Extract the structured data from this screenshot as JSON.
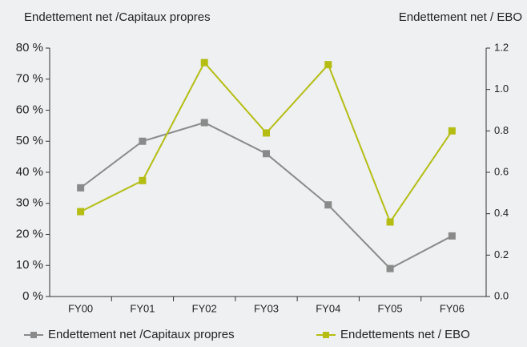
{
  "chart_data": {
    "type": "line",
    "y_label": "Endettement net /Capitaux propres",
    "y2_label": "Endettement net / EBO",
    "categories": [
      "FY00",
      "FY01",
      "FY02",
      "FY03",
      "FY04",
      "FY05",
      "FY06"
    ],
    "series": [
      {
        "name": "Endettement net /Capitaux propres",
        "color": "#8a8a8a",
        "values": [
          35,
          50,
          56,
          46,
          29.5,
          9,
          19.5
        ]
      },
      {
        "name": "Endettements net / EBO",
        "color": "#b5bd12",
        "axis": "y2",
        "values": [
          0.41,
          0.56,
          1.13,
          0.79,
          1.12,
          0.36,
          0.8
        ]
      }
    ],
    "ylim": [
      0,
      80
    ],
    "yticks": [
      {
        "value": 0,
        "label": "0 %"
      },
      {
        "value": 10,
        "label": "10 %"
      },
      {
        "value": 20,
        "label": "20 %"
      },
      {
        "value": 30,
        "label": "30 %"
      },
      {
        "value": 40,
        "label": "40 %"
      },
      {
        "value": 50,
        "label": "50 %"
      },
      {
        "value": 60,
        "label": "60 %"
      },
      {
        "value": 70,
        "label": "70 %"
      },
      {
        "value": 80,
        "label": "80 %"
      }
    ],
    "y2lim": [
      0,
      1.2
    ],
    "y2ticks": [
      {
        "value": 0,
        "label": "0.0"
      },
      0.2,
      0.4,
      0.6,
      0.8,
      {
        "value": 1,
        "label": "1.0"
      },
      1.2
    ],
    "grid": false
  }
}
